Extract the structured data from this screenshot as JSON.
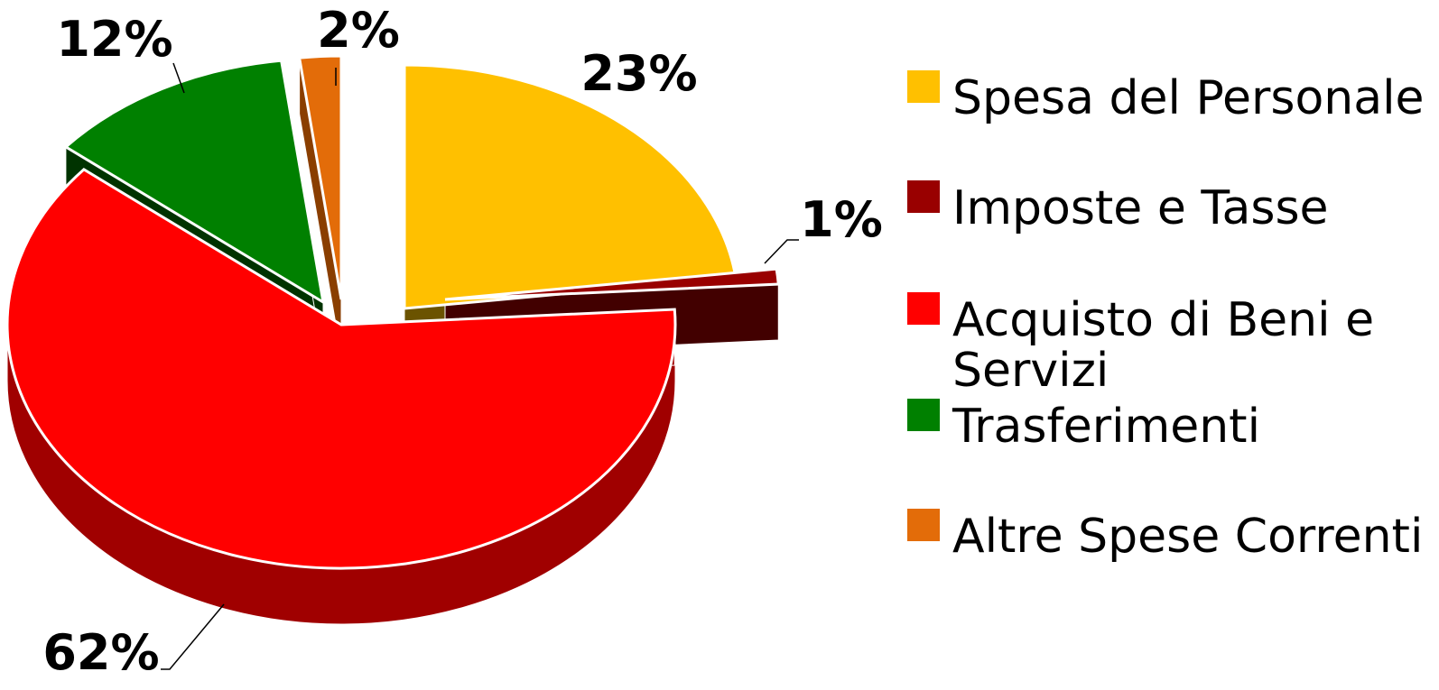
{
  "chart_data": {
    "type": "pie",
    "categories": [
      "Spesa del Personale",
      "Imposte e Tasse",
      "Acquisto di Beni e Servizi",
      "Trasferimenti",
      "Altre Spese Correnti"
    ],
    "values": [
      23,
      1,
      62,
      12,
      2
    ],
    "labels": [
      "23%",
      "1%",
      "62%",
      "12%",
      "2%"
    ],
    "legend_lines": [
      [
        "Spesa del Personale"
      ],
      [
        "Imposte e Tasse"
      ],
      [
        "Acquisto di Beni e",
        "Servizi"
      ],
      [
        "Trasferimenti"
      ],
      [
        "Altre Spese Correnti"
      ]
    ],
    "legend_position": "right",
    "exploded": true,
    "style": "3d",
    "colors": [
      "#FFC000",
      "#990000",
      "#FF0000",
      "#008000",
      "#E36C09"
    ],
    "side_colors": [
      "#6B5300",
      "#420000",
      "#A00000",
      "#003300",
      "#8A3E00"
    ]
  }
}
